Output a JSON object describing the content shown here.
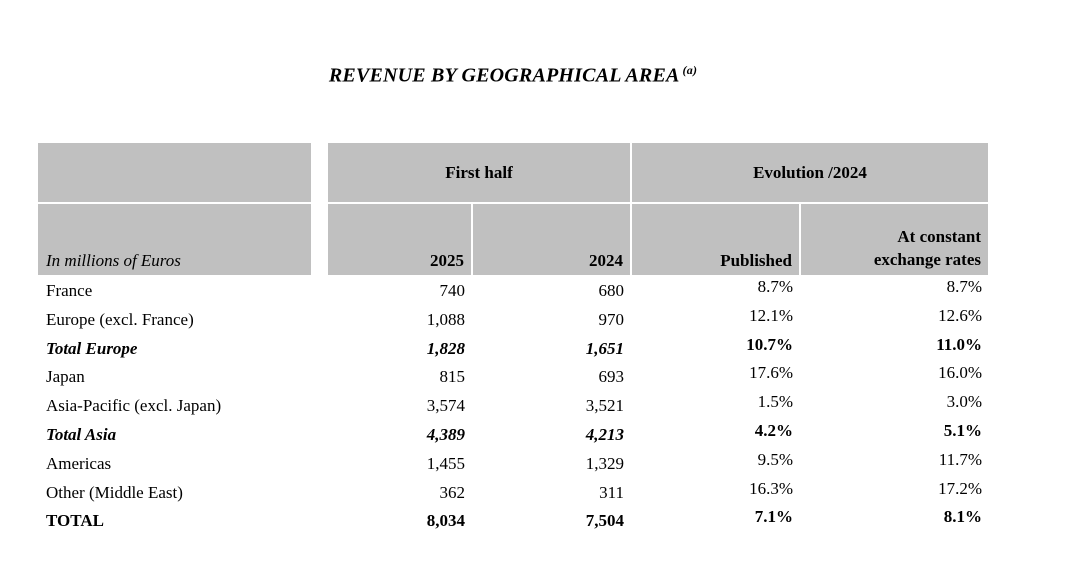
{
  "title": {
    "text": "REVENUE BY GEOGRAPHICAL AREA",
    "superscript": "(a)"
  },
  "table": {
    "corner_label": "In millions of Euros",
    "header_bg": "#c0c0c0",
    "col_groups": [
      {
        "label": "First half"
      },
      {
        "label": "Evolution /2024"
      }
    ],
    "columns": [
      "2025",
      "2024",
      "Published",
      "At constant exchange rates"
    ],
    "rows": [
      {
        "label": "France",
        "v2025": "740",
        "v2024": "680",
        "published": "8.7%",
        "constant": "8.7%",
        "style": "normal"
      },
      {
        "label": "Europe (excl. France)",
        "v2025": "1,088",
        "v2024": "970",
        "published": "12.1%",
        "constant": "12.6%",
        "style": "normal"
      },
      {
        "label": "Total Europe",
        "v2025": "1,828",
        "v2024": "1,651",
        "published": "10.7%",
        "constant": "11.0%",
        "style": "subtotal"
      },
      {
        "label": "Japan",
        "v2025": "815",
        "v2024": "693",
        "published": "17.6%",
        "constant": "16.0%",
        "style": "normal"
      },
      {
        "label": "Asia-Pacific (excl. Japan)",
        "v2025": "3,574",
        "v2024": "3,521",
        "published": "1.5%",
        "constant": "3.0%",
        "style": "normal"
      },
      {
        "label": "Total Asia",
        "v2025": "4,389",
        "v2024": "4,213",
        "published": "4.2%",
        "constant": "5.1%",
        "style": "subtotal"
      },
      {
        "label": "Americas",
        "v2025": "1,455",
        "v2024": "1,329",
        "published": "9.5%",
        "constant": "11.7%",
        "style": "normal"
      },
      {
        "label": "Other (Middle East)",
        "v2025": "362",
        "v2024": "311",
        "published": "16.3%",
        "constant": "17.2%",
        "style": "normal"
      },
      {
        "label": "TOTAL",
        "v2025": "8,034",
        "v2024": "7,504",
        "published": "7.1%",
        "constant": "8.1%",
        "style": "total"
      }
    ]
  }
}
